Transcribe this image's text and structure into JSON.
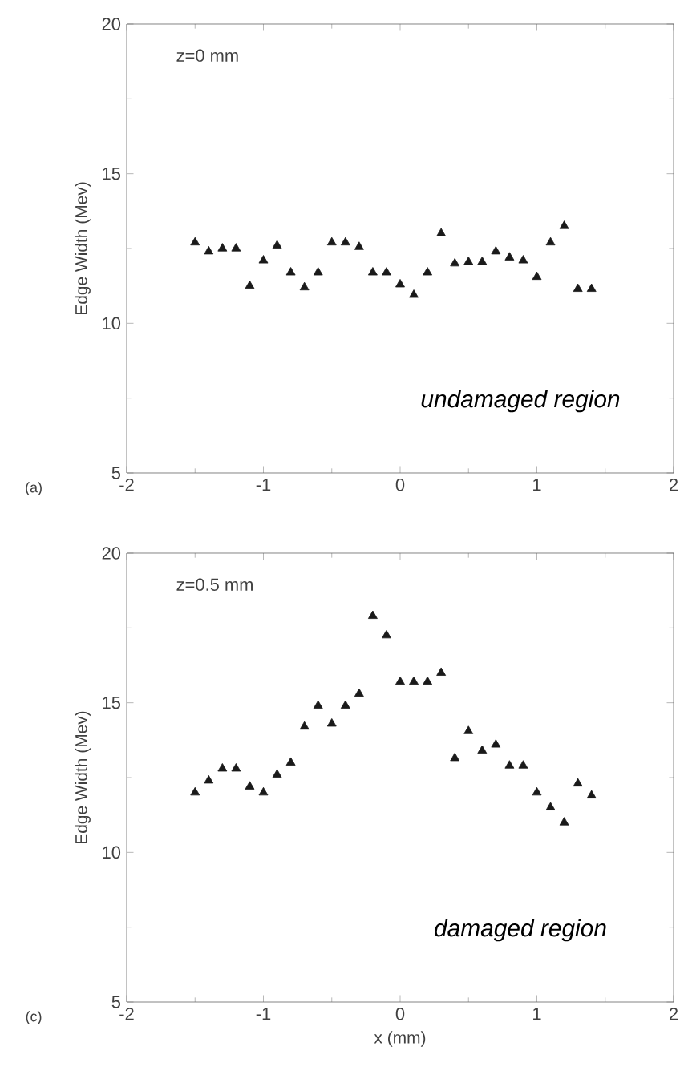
{
  "chart_data": [
    {
      "type": "scatter",
      "ylabel": "Edge Width (Mev)",
      "marker": "triangle",
      "grid": false,
      "xlim": [
        -2,
        2
      ],
      "ylim": [
        5,
        20
      ],
      "xticks": [
        -2,
        -1,
        0,
        1,
        2
      ],
      "yticks": [
        5,
        10,
        15,
        20
      ],
      "annotations": [
        "z=0 mm",
        "undamaged region",
        "(a)"
      ],
      "series": [
        {
          "color": "#1a1a1a",
          "x": [
            -1.5,
            -1.4,
            -1.3,
            -1.2,
            -1.1,
            -1.0,
            -0.9,
            -0.8,
            -0.7,
            -0.6,
            -0.5,
            -0.4,
            -0.3,
            -0.2,
            -0.1,
            0.0,
            0.1,
            0.2,
            0.3,
            0.4,
            0.5,
            0.6,
            0.7,
            0.8,
            0.9,
            1.0,
            1.1,
            1.2,
            1.3,
            1.4
          ],
          "values": [
            12.7,
            12.4,
            12.5,
            12.5,
            11.25,
            12.1,
            12.6,
            11.7,
            11.2,
            11.7,
            12.7,
            12.7,
            12.55,
            11.7,
            11.7,
            11.3,
            10.95,
            11.7,
            13.0,
            12.0,
            12.05,
            12.05,
            12.4,
            12.2,
            12.1,
            11.55,
            12.7,
            13.25,
            11.15,
            11.15
          ]
        }
      ]
    },
    {
      "type": "scatter",
      "ylabel": "Edge Width (Mev)",
      "xlabel": "x  (mm)",
      "marker": "triangle",
      "grid": false,
      "xlim": [
        -2,
        2
      ],
      "ylim": [
        5,
        20
      ],
      "xticks": [
        -2,
        -1,
        0,
        1,
        2
      ],
      "yticks": [
        5,
        10,
        15,
        20
      ],
      "annotations": [
        "z=0.5 mm",
        "damaged region",
        "(c)"
      ],
      "series": [
        {
          "color": "#1a1a1a",
          "x": [
            -1.5,
            -1.4,
            -1.3,
            -1.2,
            -1.1,
            -1.0,
            -0.9,
            -0.8,
            -0.7,
            -0.6,
            -0.5,
            -0.4,
            -0.3,
            -0.2,
            -0.1,
            0.0,
            0.1,
            0.2,
            0.3,
            0.4,
            0.5,
            0.6,
            0.7,
            0.8,
            0.9,
            1.0,
            1.1,
            1.2,
            1.3,
            1.4
          ],
          "values": [
            12.0,
            12.4,
            12.8,
            12.8,
            12.2,
            12.0,
            12.6,
            13.0,
            14.2,
            14.9,
            14.3,
            14.9,
            15.3,
            17.9,
            17.25,
            15.7,
            15.7,
            15.7,
            16.0,
            13.15,
            14.05,
            13.4,
            13.6,
            12.9,
            12.9,
            12.0,
            11.5,
            11.0,
            12.3,
            11.9
          ]
        }
      ]
    }
  ]
}
